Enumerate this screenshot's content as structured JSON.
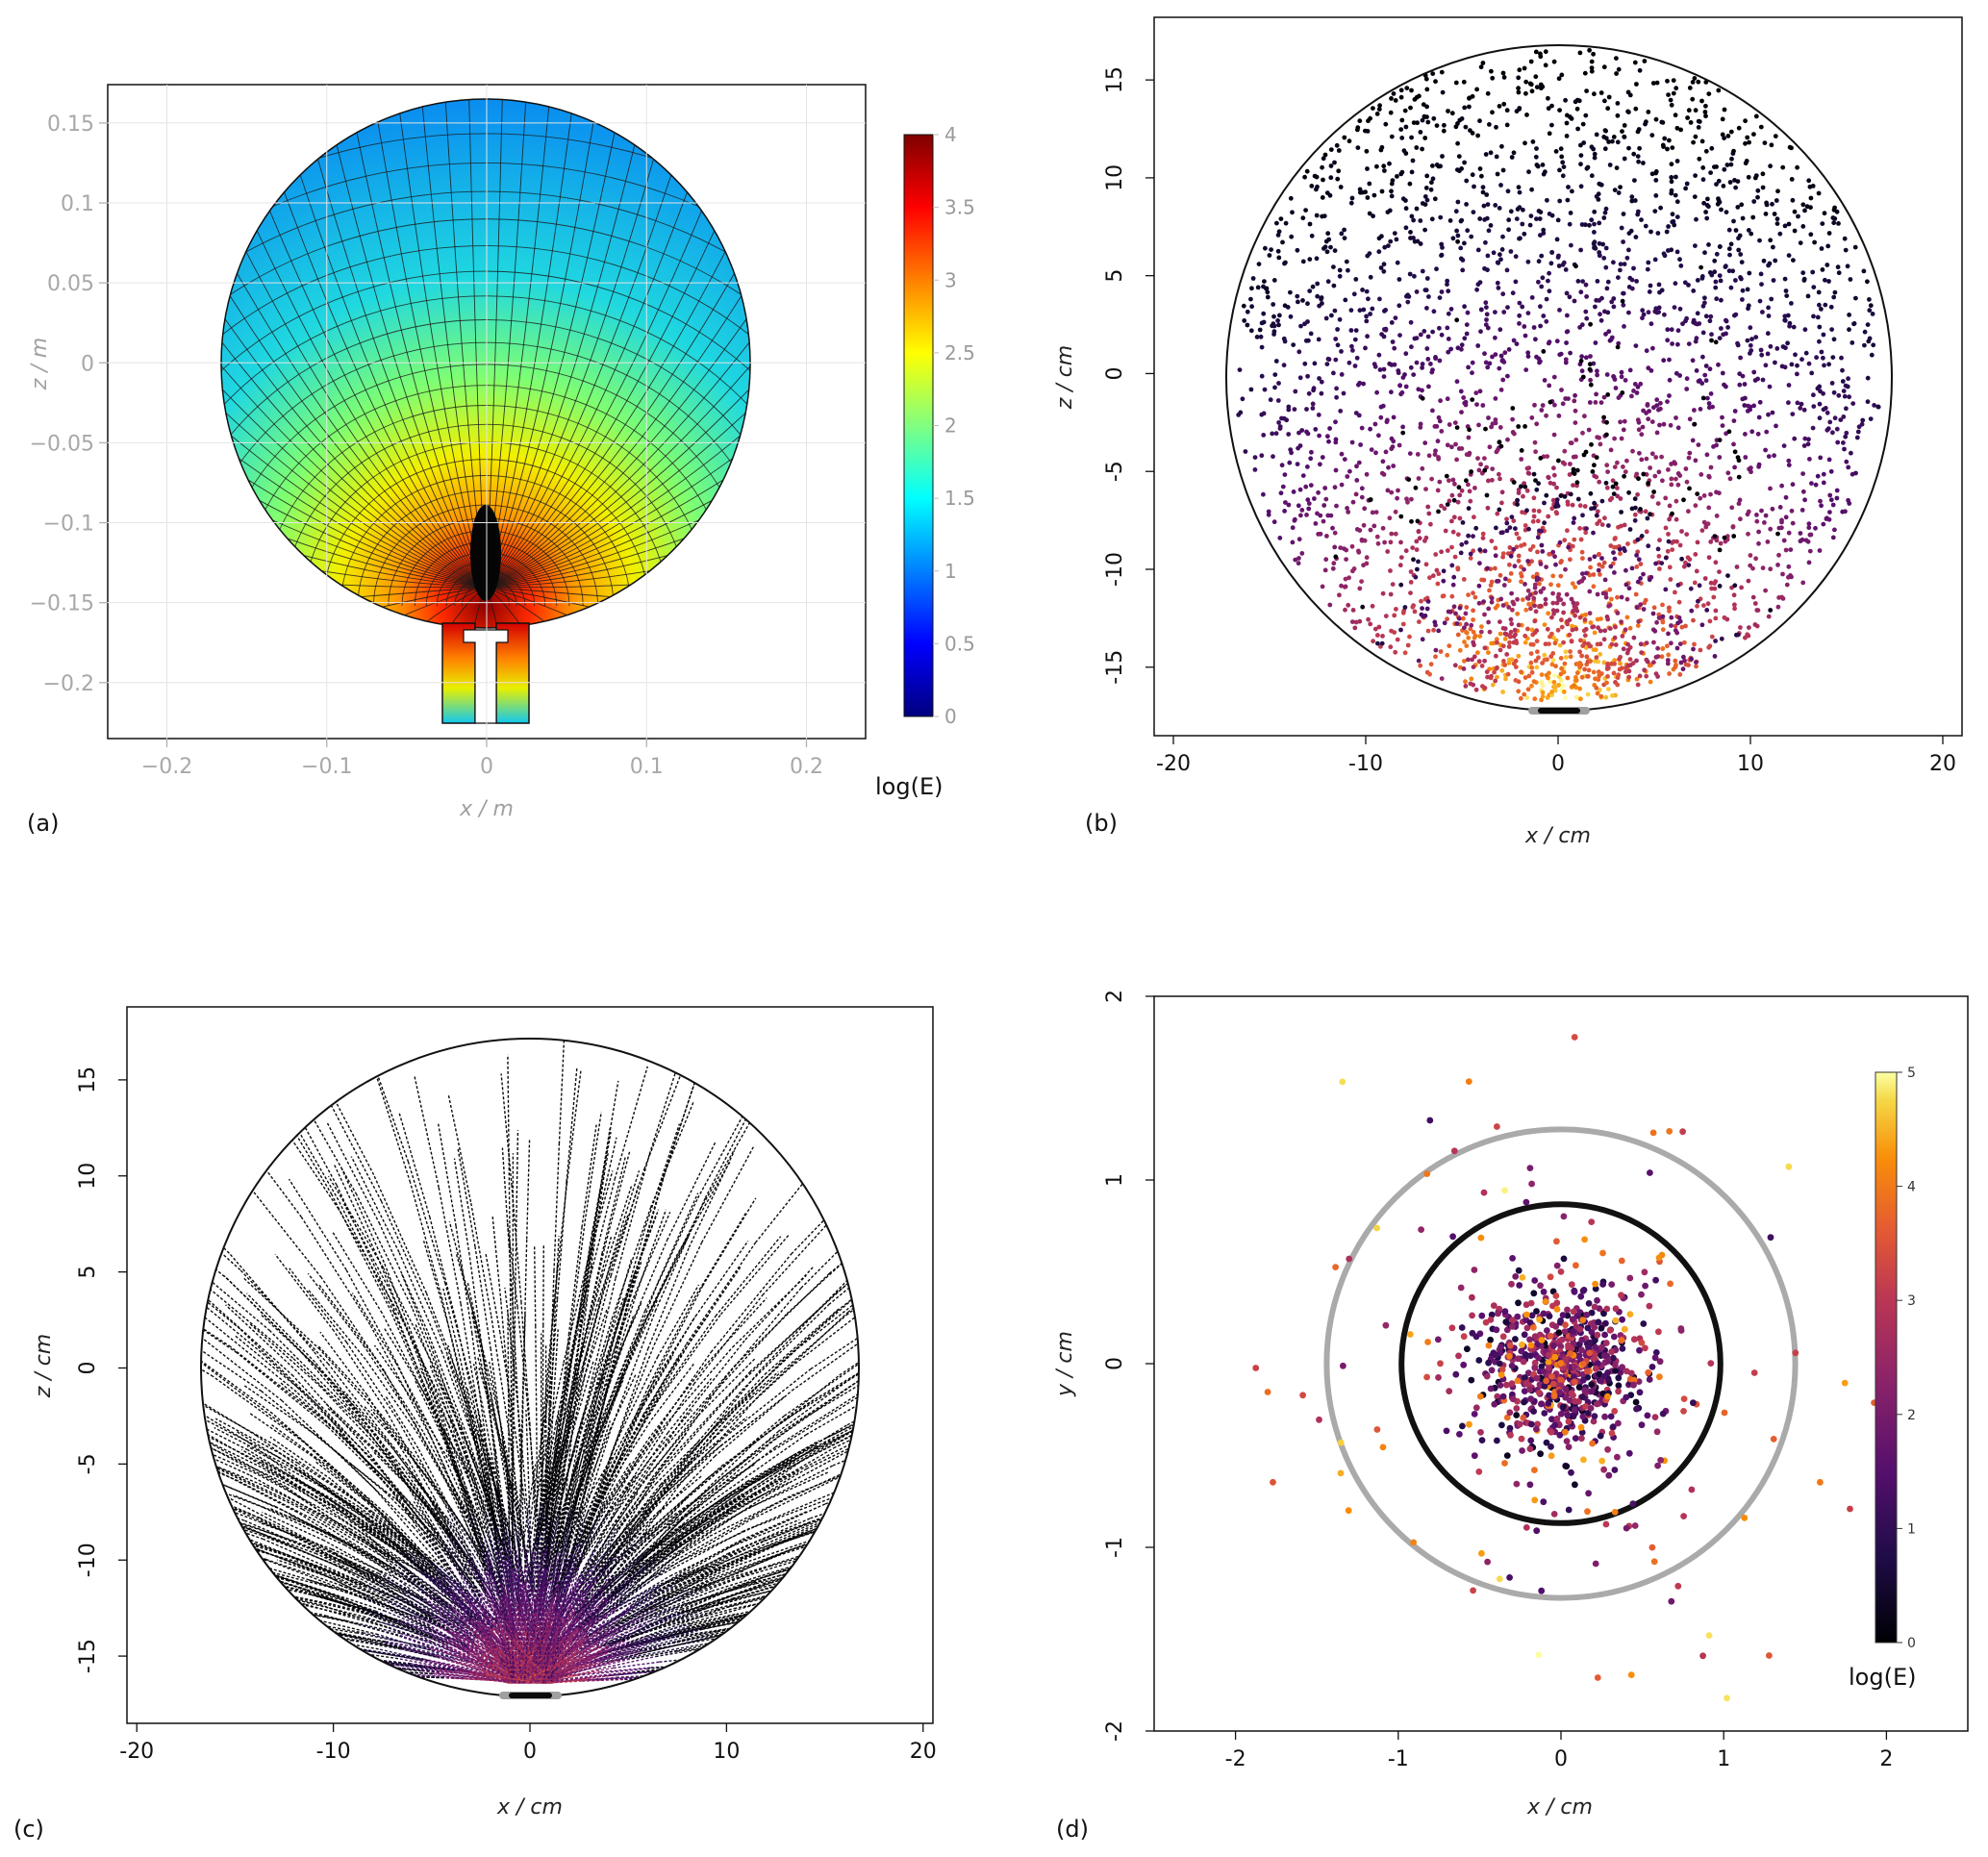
{
  "chart_data": [
    {
      "panel": "(a)",
      "type": "heatmap",
      "xlabel": "x / m",
      "ylabel": "z / m",
      "xlim": [
        -0.237,
        0.237
      ],
      "ylim": [
        -0.235,
        0.174
      ],
      "x_ticks": [
        "−0.2",
        "−0.1",
        "0",
        "0.1",
        "0.2"
      ],
      "y_ticks": [
        "0.15",
        "0.1",
        "0.05",
        "0",
        "−0.05",
        "−0.1",
        "−0.15",
        "−0.2"
      ],
      "sphere": {
        "center": [
          0,
          0
        ],
        "radius": 0.167
      },
      "colorbar": {
        "label": "log(E)",
        "range": [
          0,
          4
        ],
        "ticks": [
          "4",
          "3.5",
          "3",
          "2.5",
          "2",
          "1.5",
          "1",
          "0.5",
          "0"
        ],
        "colormap": "jet"
      }
    },
    {
      "panel": "(b)",
      "type": "scatter",
      "xlabel": "x / cm",
      "ylabel": "z / cm",
      "xlim": [
        -21,
        21
      ],
      "ylim": [
        -18.5,
        18.2
      ],
      "x_ticks": [
        "-20",
        "-10",
        "0",
        "10",
        "20"
      ],
      "y_ticks": [
        "15",
        "10",
        "5",
        "0",
        "-5",
        "-10",
        "-15"
      ],
      "sphere": {
        "center": [
          0,
          0
        ],
        "radius": 16.8
      },
      "colormap": "inferno"
    },
    {
      "panel": "(c)",
      "type": "line",
      "xlabel": "x / cm",
      "ylabel": "z / cm",
      "xlim": [
        -20.5,
        20.5
      ],
      "ylim": [
        -18.5,
        18.8
      ],
      "x_ticks": [
        "-20",
        "-10",
        "0",
        "10",
        "20"
      ],
      "y_ticks": [
        "15",
        "10",
        "5",
        "0",
        "-5",
        "-10",
        "-15"
      ],
      "sphere": {
        "center": [
          0,
          0
        ],
        "radius": 16.8
      },
      "colormap": "inferno"
    },
    {
      "panel": "(d)",
      "type": "scatter",
      "xlabel": "x / cm",
      "ylabel": "y / cm",
      "xlim": [
        -2.5,
        2.5
      ],
      "ylim": [
        -2.0,
        2.0
      ],
      "x_ticks": [
        "-2",
        "-1",
        "0",
        "1",
        "2"
      ],
      "y_ticks": [
        "2",
        "1",
        "0",
        "-1",
        "-2"
      ],
      "rings": [
        {
          "radius": 1.44,
          "color": "#aaaaaa"
        },
        {
          "radius": 0.98,
          "color": "#111111"
        }
      ],
      "colorbar": {
        "label": "log(E)",
        "range": [
          0,
          5
        ],
        "ticks": [
          "5",
          "4",
          "3",
          "2",
          "1",
          "0"
        ],
        "colormap": "inferno"
      }
    }
  ],
  "colors": {
    "accent_inner_ring": "#111111",
    "accent_outer_ring": "#aaaaaa"
  }
}
